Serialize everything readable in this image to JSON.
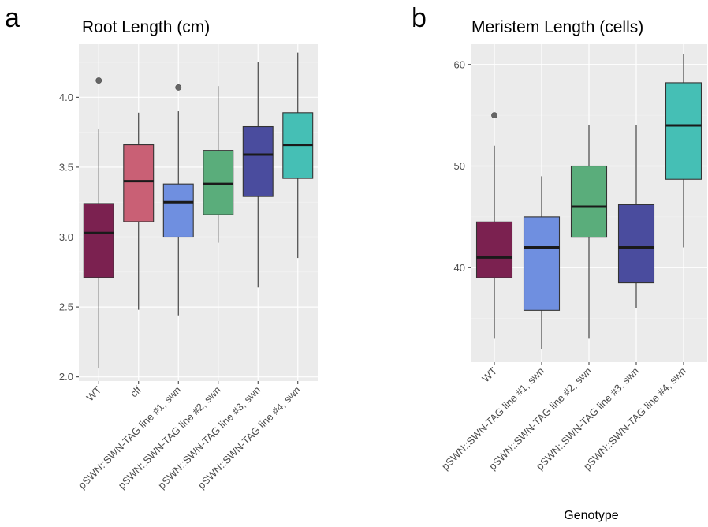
{
  "figure": {
    "panel_a_letter": "a",
    "panel_b_letter": "b"
  },
  "chart_data": [
    {
      "type": "box",
      "panel": "a",
      "title": "Root Length (cm)",
      "xlabel": "",
      "ylabel": "",
      "ylim": [
        1.97,
        4.38
      ],
      "yticks": [
        2.0,
        2.5,
        3.0,
        3.5,
        4.0
      ],
      "ytick_labels": [
        "2.0",
        "2.5",
        "3.0",
        "3.5",
        "4.0"
      ],
      "grid": true,
      "categories": [
        "WT",
        "clf",
        "pSWN::SWN-TAG line #1, swn",
        "pSWN::SWN-TAG line #2, swn",
        "pSWN::SWN-TAG line #3, swn",
        "pSWN::SWN-TAG line #4, swn"
      ],
      "colors": [
        "#7b2150",
        "#c96075",
        "#6f8fe0",
        "#5aad7b",
        "#4a4c9e",
        "#45bfb5"
      ],
      "boxes": [
        {
          "whisker_low": 2.06,
          "q1": 2.71,
          "median": 3.03,
          "q3": 3.24,
          "whisker_high": 3.77,
          "outliers": [
            4.12
          ]
        },
        {
          "whisker_low": 2.48,
          "q1": 3.11,
          "median": 3.4,
          "q3": 3.66,
          "whisker_high": 3.89,
          "outliers": []
        },
        {
          "whisker_low": 2.44,
          "q1": 3.0,
          "median": 3.25,
          "q3": 3.38,
          "whisker_high": 3.9,
          "outliers": [
            4.07
          ]
        },
        {
          "whisker_low": 2.96,
          "q1": 3.16,
          "median": 3.38,
          "q3": 3.62,
          "whisker_high": 4.08,
          "outliers": []
        },
        {
          "whisker_low": 2.64,
          "q1": 3.29,
          "median": 3.59,
          "q3": 3.79,
          "whisker_high": 4.25,
          "outliers": []
        },
        {
          "whisker_low": 2.85,
          "q1": 3.42,
          "median": 3.66,
          "q3": 3.89,
          "whisker_high": 4.32,
          "outliers": []
        }
      ]
    },
    {
      "type": "box",
      "panel": "b",
      "title": "Meristem Length (cells)",
      "xlabel": "Genotype",
      "ylabel": "",
      "ylim": [
        30.7,
        62.0
      ],
      "yticks": [
        40,
        50,
        60
      ],
      "ytick_labels": [
        "40",
        "50",
        "60"
      ],
      "grid": true,
      "categories": [
        "WT",
        "pSWN::SWN-TAG line #1, swn",
        "pSWN::SWN-TAG line #2, swn",
        "pSWN::SWN-TAG line #3, swn",
        "pSWN::SWN-TAG line #4, swn"
      ],
      "colors": [
        "#7b2150",
        "#6f8fe0",
        "#5aad7b",
        "#4a4c9e",
        "#45bfb5"
      ],
      "boxes": [
        {
          "whisker_low": 33,
          "q1": 39,
          "median": 41,
          "q3": 44.5,
          "whisker_high": 52,
          "outliers": [
            55
          ]
        },
        {
          "whisker_low": 32,
          "q1": 35.8,
          "median": 42,
          "q3": 45,
          "whisker_high": 49,
          "outliers": []
        },
        {
          "whisker_low": 33,
          "q1": 43,
          "median": 46,
          "q3": 50,
          "whisker_high": 54,
          "outliers": []
        },
        {
          "whisker_low": 36,
          "q1": 38.5,
          "median": 42,
          "q3": 46.2,
          "whisker_high": 54,
          "outliers": []
        },
        {
          "whisker_low": 42,
          "q1": 48.7,
          "median": 54,
          "q3": 58.2,
          "whisker_high": 61,
          "outliers": []
        }
      ]
    }
  ]
}
